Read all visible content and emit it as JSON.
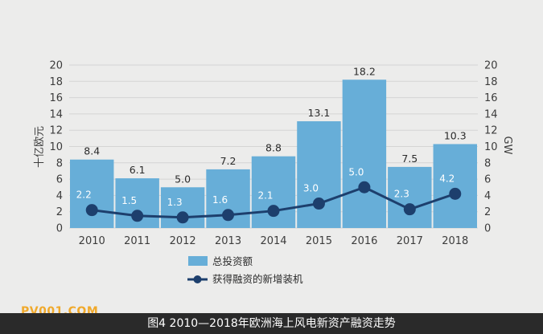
{
  "chart_data": {
    "type": "bar",
    "categories": [
      "2010",
      "2011",
      "2012",
      "2013",
      "2014",
      "2015",
      "2016",
      "2017",
      "2018"
    ],
    "series": [
      {
        "name": "总投资额",
        "type": "bar",
        "axis": "left",
        "values": [
          8.4,
          6.1,
          5.0,
          7.2,
          8.8,
          13.1,
          18.2,
          7.5,
          10.3
        ],
        "labels": [
          "8.4",
          "6.1",
          "5.0",
          "7.2",
          "8.8",
          "13.1",
          "18.2",
          "7.5",
          "10.3"
        ]
      },
      {
        "name": "获得融资的新增装机",
        "type": "line",
        "axis": "right",
        "values": [
          2.2,
          1.5,
          1.3,
          1.6,
          2.1,
          3.0,
          5.0,
          2.3,
          4.2
        ],
        "labels": [
          "2.2",
          "1.5",
          "1.3",
          "1.6",
          "2.1",
          "3.0",
          "5.0",
          "2.3",
          "4.2"
        ]
      }
    ],
    "ylabel": "十亿欧元",
    "y2label": "GW",
    "ylim": [
      0,
      20
    ],
    "y2lim": [
      0,
      20
    ],
    "yticks": [
      "0",
      "2",
      "4",
      "6",
      "8",
      "10",
      "12",
      "14",
      "16",
      "18",
      "20"
    ],
    "y2ticks": [
      "0",
      "2",
      "4",
      "6",
      "8",
      "10",
      "12",
      "14",
      "16",
      "18",
      "20"
    ],
    "grid": true,
    "legend": "bottom",
    "colors": {
      "bar": "#67aed8",
      "line": "#1d3f6d",
      "grid": "#d4d4d4",
      "background": "#ececeb"
    }
  },
  "caption": "图4 2010—2018年欧洲海上风电新资产融资走势",
  "watermark": "PV001.COM"
}
